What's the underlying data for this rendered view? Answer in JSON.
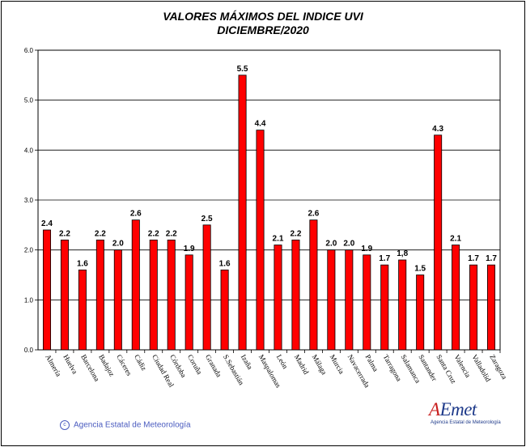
{
  "title_line1": "VALORES MÁXIMOS DEL INDICE UVI",
  "title_line2": "DICIEMBRE/2020",
  "copyright": "Agencia Estatal de Meteorología",
  "logo": {
    "word": "AEmet",
    "subtitle": "Agencia Estatal de Meteorología"
  },
  "colors": {
    "bar": "#ff0000",
    "bar_border": "#000000",
    "plot_bg": "#ffffff",
    "grid": "#000000"
  },
  "chart_data": {
    "type": "bar",
    "title": "VALORES MÁXIMOS DEL INDICE UVI",
    "subtitle": "DICIEMBRE/2020",
    "xlabel": "",
    "ylabel": "",
    "ylim": [
      0,
      6
    ],
    "yticks": [
      "0.0",
      "1.0",
      "2.0",
      "3.0",
      "4.0",
      "5.0",
      "6.0"
    ],
    "grid": true,
    "categories": [
      "Almería",
      "Huelva",
      "Barcelona",
      "Badajoz",
      "Cáceres",
      "Cádiz",
      "Ciudad Real",
      "Córdoba",
      "Coruña",
      "Granada",
      "S.Sebastián",
      "Izaña",
      "Maspalomas",
      "León",
      "Madrid",
      "Málaga",
      "Murcia",
      "Navacerrada",
      "Palma",
      "Tarragona",
      "Salamanca",
      "Santander",
      "Santa Cruz",
      "Valencia",
      "Valladolid",
      "Zaragoza"
    ],
    "values": [
      2.4,
      2.2,
      1.6,
      2.2,
      2.0,
      2.6,
      2.2,
      2.2,
      1.9,
      2.5,
      1.6,
      5.5,
      4.4,
      2.1,
      2.2,
      2.6,
      2.0,
      2.0,
      1.9,
      1.7,
      1.8,
      1.5,
      4.3,
      2.1,
      1.7,
      1.7
    ],
    "value_labels": [
      "2.4",
      "2.2",
      "1.6",
      "2.2",
      "2.0",
      "2.6",
      "2.2",
      "2.2",
      "1.9",
      "2.5",
      "1.6",
      "5.5",
      "4.4",
      "2.1",
      "2.2",
      "2.6",
      "2.0",
      "2.0",
      "1.9",
      "1.7",
      "1,8",
      "1.5",
      "4.3",
      "2.1",
      "1.7",
      "1.7"
    ]
  }
}
